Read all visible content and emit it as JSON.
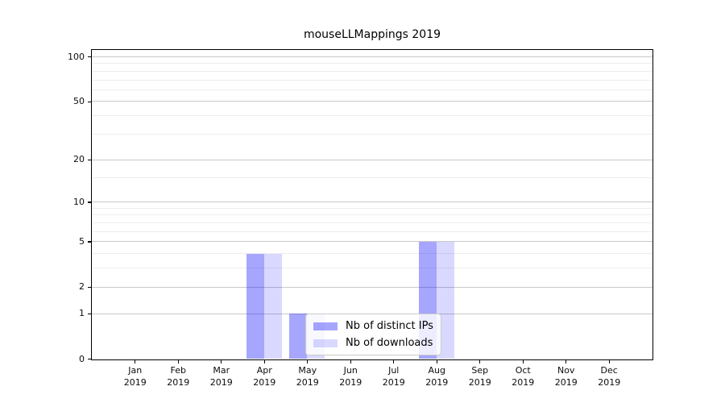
{
  "chart_data": {
    "type": "bar",
    "title": "mouseLLMappings 2019",
    "year": "2019",
    "categories": [
      "Jan",
      "Feb",
      "Mar",
      "Apr",
      "May",
      "Jun",
      "Jul",
      "Aug",
      "Sep",
      "Oct",
      "Nov",
      "Dec"
    ],
    "series": [
      {
        "key": "distinct-ips",
        "name": "Nb of distinct IPs",
        "color": "#0000ff59",
        "values": [
          0,
          0,
          0,
          4,
          1,
          0,
          0,
          5,
          0,
          0,
          0,
          0
        ]
      },
      {
        "key": "downloads",
        "name": "Nb of downloads",
        "color": "#0000ff26",
        "values": [
          0,
          0,
          0,
          4,
          1,
          0,
          0,
          5,
          0,
          0,
          0,
          0
        ]
      }
    ],
    "y_axis": {
      "scale": "log1p",
      "ticks": [
        0,
        1,
        2,
        5,
        10,
        20,
        50,
        100
      ],
      "minor_ticks": [
        3,
        4,
        6,
        7,
        8,
        9,
        15,
        30,
        40,
        60,
        70,
        80,
        90
      ],
      "view_max": 111
    },
    "legend": {
      "position": "inside-bottom-center-left"
    },
    "colors": {
      "grid_major": "#c9c9c9",
      "grid_minor": "#ededed",
      "spine": "#000000",
      "text": "#0d0d0d"
    }
  }
}
